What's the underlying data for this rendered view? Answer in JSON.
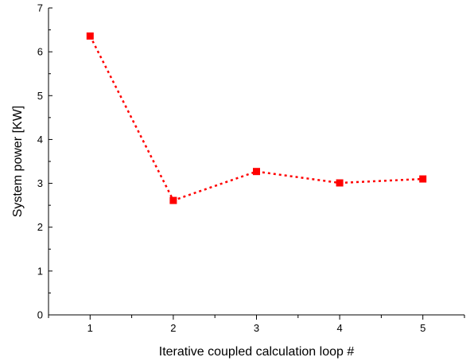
{
  "chart_data": {
    "type": "line",
    "title": "",
    "xlabel": "Iterative coupled calculation loop #",
    "ylabel": "System power [KW]",
    "xlim": [
      0.5,
      5.5
    ],
    "ylim": [
      0,
      7
    ],
    "x_ticks": [
      1,
      2,
      3,
      4,
      5
    ],
    "y_ticks": [
      0,
      1,
      2,
      3,
      4,
      5,
      6,
      7
    ],
    "grid": false,
    "series": [
      {
        "x": [
          1,
          2,
          3,
          4,
          5
        ],
        "y": [
          6.36,
          2.61,
          3.27,
          3.01,
          3.1
        ],
        "color": "#ff0000",
        "line_style": "dotted",
        "marker": "square"
      }
    ]
  }
}
